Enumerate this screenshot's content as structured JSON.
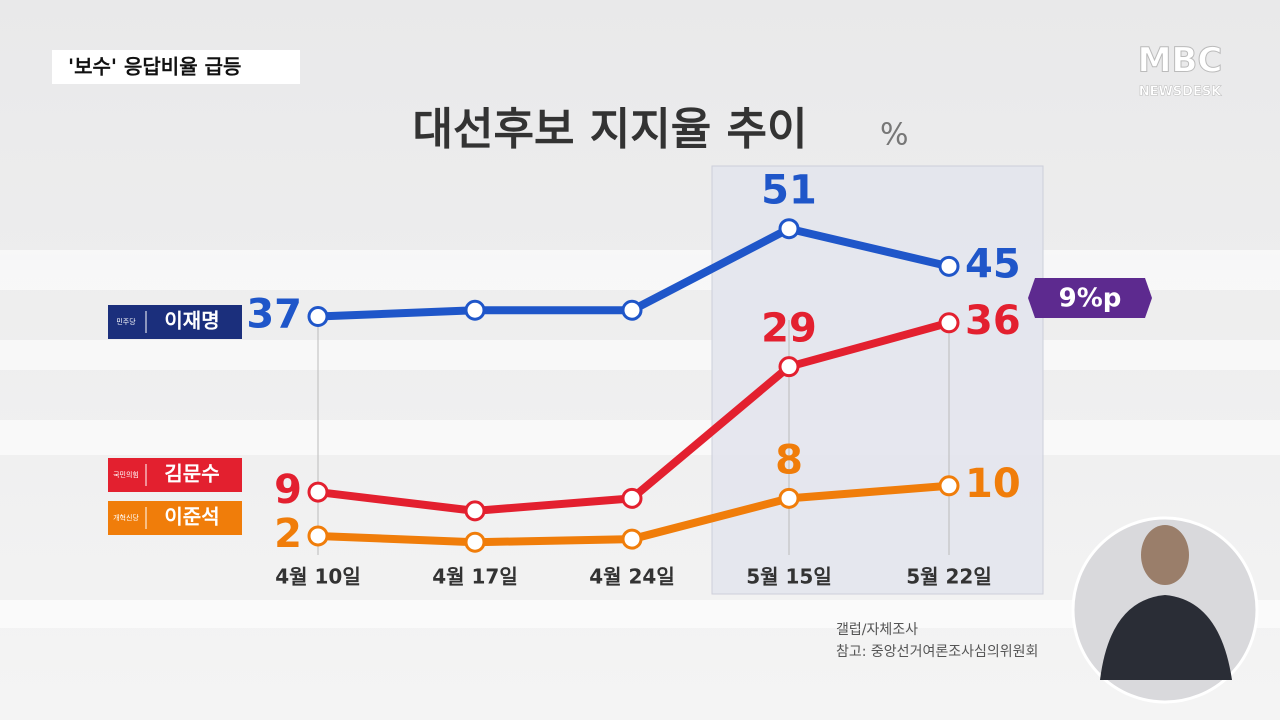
{
  "caption": "'보수' 응답비율 급등",
  "logo": {
    "main": "MBC",
    "sub": "NEWSDESK"
  },
  "chart_data": {
    "type": "line",
    "title": "대선후보 지지율 추이",
    "unit": "%",
    "categories": [
      "4월 10일",
      "4월 17일",
      "4월 24일",
      "5월 15일",
      "5월 22일"
    ],
    "series": [
      {
        "name": "이재명",
        "party": "민주당",
        "color": "#1f56c9",
        "label_color": "#1b2f7c",
        "values": [
          37,
          38,
          38,
          51,
          45
        ],
        "value_labels": [
          "37",
          null,
          null,
          "51",
          "45"
        ]
      },
      {
        "name": "김문수",
        "party": "국민의힘",
        "color": "#e3202f",
        "label_color": "#e3202f",
        "values": [
          9,
          6,
          8,
          29,
          36
        ],
        "value_labels": [
          "9",
          null,
          null,
          "29",
          "36"
        ]
      },
      {
        "name": "이준석",
        "party": "개혁신당",
        "color": "#f07d0a",
        "label_color": "#f07d0a",
        "values": [
          2,
          1,
          1.5,
          8,
          10
        ],
        "value_labels": [
          "2",
          null,
          null,
          "8",
          "10"
        ]
      }
    ],
    "ylim": [
      0,
      60
    ],
    "gap_label": "9%p",
    "source": "갤럽/자체조사",
    "note": "참고: 중앙선거여론조사심의위원회"
  }
}
